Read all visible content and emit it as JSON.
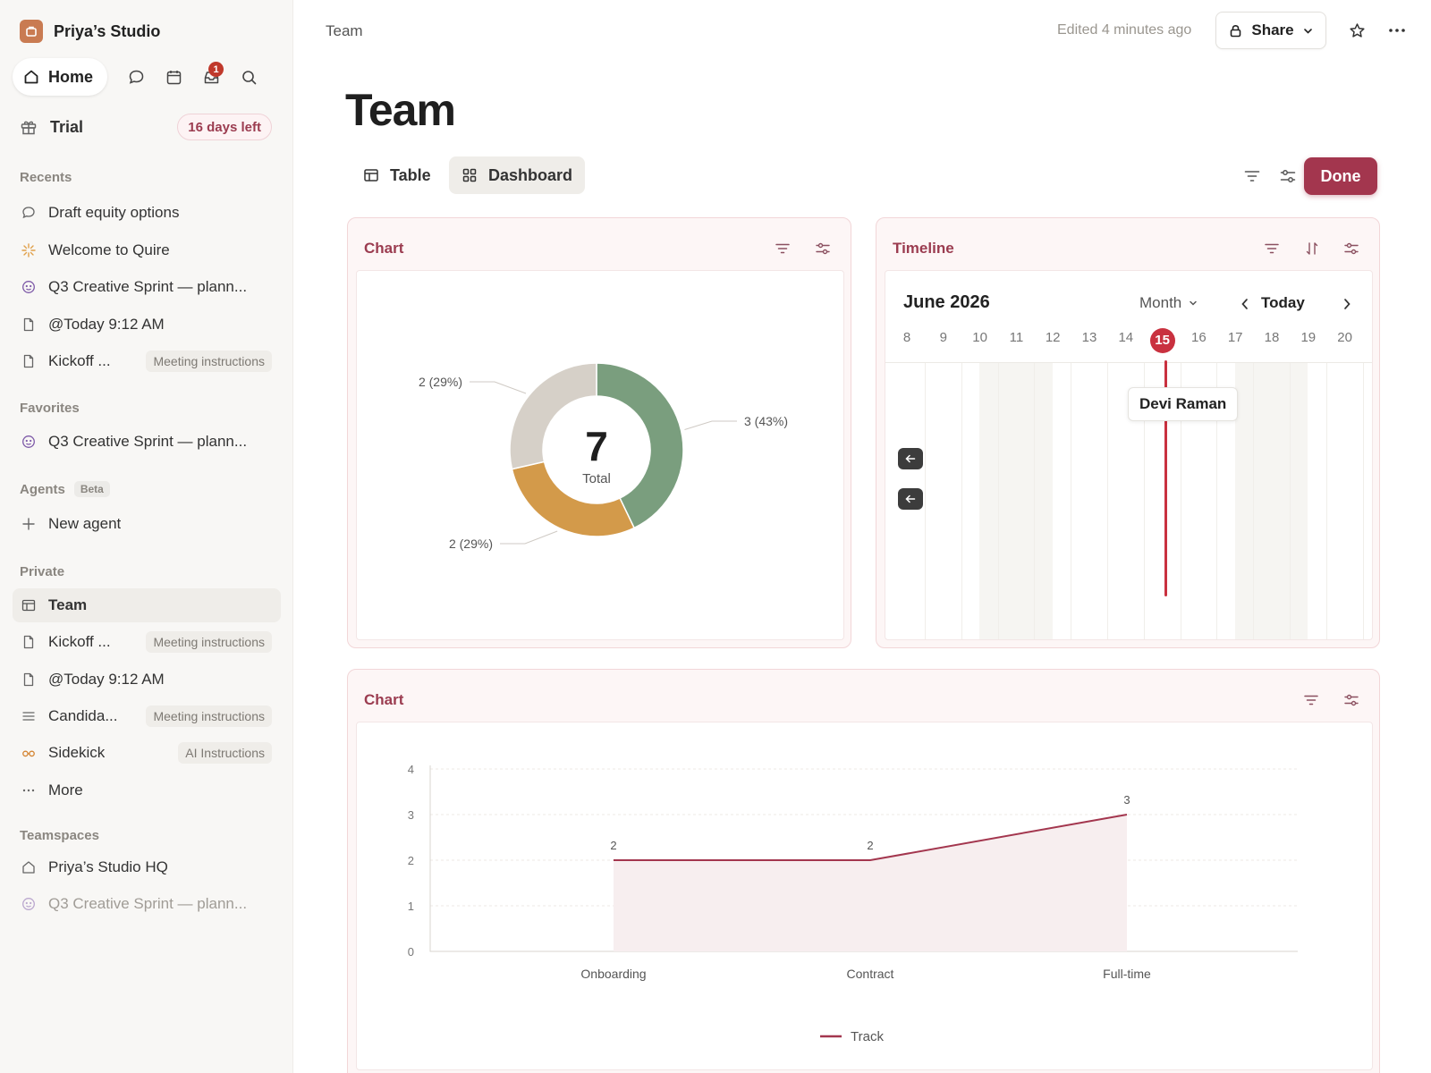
{
  "workspace": {
    "name": "Priya’s Studio"
  },
  "topnav": {
    "home_label": "Home",
    "inbox_badge": "1"
  },
  "trial": {
    "label": "Trial",
    "days_left": "16 days left"
  },
  "sections": {
    "recents": "Recents",
    "favorites": "Favorites",
    "agents": "Agents",
    "agents_badge": "Beta",
    "private": "Private",
    "teamspaces": "Teamspaces"
  },
  "recents": [
    {
      "label": "Draft equity options",
      "icon": "chat-icon"
    },
    {
      "label": "Welcome to Quire",
      "icon": "sparkle-icon"
    },
    {
      "label": "Q3 Creative Sprint — plann...",
      "icon": "emoji-icon"
    },
    {
      "label": "@Today 9:12 AM",
      "icon": "page-icon"
    },
    {
      "label": "Kickoff ...",
      "icon": "page-icon",
      "tag": "Meeting instructions"
    }
  ],
  "favorites": [
    {
      "label": "Q3 Creative Sprint — plann...",
      "icon": "emoji-icon"
    }
  ],
  "agents": [
    {
      "label": "New agent",
      "icon": "plus-icon"
    }
  ],
  "private": [
    {
      "label": "Team",
      "icon": "table-icon",
      "active": true
    },
    {
      "label": "Kickoff ...",
      "icon": "page-icon",
      "tag": "Meeting instructions"
    },
    {
      "label": "@Today 9:12 AM",
      "icon": "page-icon"
    },
    {
      "label": "Candida...",
      "icon": "list-icon",
      "tag": "Meeting instructions"
    },
    {
      "label": "Sidekick",
      "icon": "glasses-icon",
      "tag": "AI Instructions"
    },
    {
      "label": "More",
      "icon": "more-icon"
    }
  ],
  "teamspaces": [
    {
      "label": "Priya’s Studio HQ",
      "icon": "home-icon"
    },
    {
      "label": "Q3 Creative Sprint — plann...",
      "icon": "emoji-icon",
      "dim": true
    }
  ],
  "header": {
    "breadcrumb": "Team",
    "edited": "Edited 4 minutes ago",
    "share_label": "Share"
  },
  "page": {
    "title": "Team",
    "tabs": [
      {
        "label": "Table",
        "icon": "table-icon",
        "active": false
      },
      {
        "label": "Dashboard",
        "icon": "grid-icon",
        "active": true
      }
    ],
    "done_label": "Done"
  },
  "widgets": {
    "donut_title": "Chart",
    "timeline_title": "Timeline",
    "line_title": "Chart"
  },
  "timeline": {
    "month_label": "June 2026",
    "view_label": "Month",
    "today_label": "Today",
    "days": [
      "8",
      "9",
      "10",
      "11",
      "12",
      "13",
      "14",
      "15",
      "16",
      "17",
      "18",
      "19",
      "20"
    ],
    "today_day": "15",
    "event_label": "Devi Raman"
  },
  "colors": {
    "accent": "#a3364e",
    "today": "#c9313f",
    "donut_green": "#7a9e7e",
    "donut_orange": "#d39a4a",
    "donut_grey": "#d6d0c8"
  },
  "chart_data": [
    {
      "type": "pie",
      "center_value": "7",
      "center_label": "Total",
      "slices": [
        {
          "value": 3,
          "label": "3 (43%)",
          "color": "#7a9e7e"
        },
        {
          "value": 2,
          "label": "2 (29%)",
          "color": "#d39a4a"
        },
        {
          "value": 2,
          "label": "2 (29%)",
          "color": "#d6d0c8"
        }
      ]
    },
    {
      "type": "area",
      "categories": [
        "Onboarding",
        "Contract",
        "Full-time"
      ],
      "series": [
        {
          "name": "Track",
          "values": [
            2,
            2,
            3
          ]
        }
      ],
      "ylim": [
        0,
        4
      ],
      "yticks": [
        "0",
        "1",
        "2",
        "3",
        "4"
      ],
      "legend": "bottom",
      "grid": true
    }
  ]
}
